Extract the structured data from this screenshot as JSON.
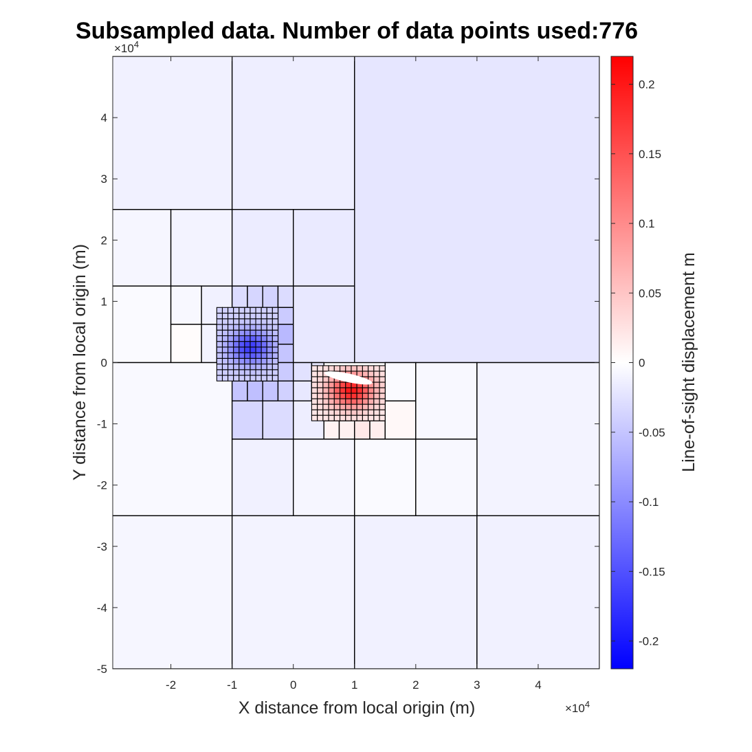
{
  "chart_data": {
    "type": "heatmap",
    "title": "Subsampled data. Number of data points used:776",
    "xlabel": "X distance from local origin (m)",
    "ylabel": "Y distance from local origin (m)",
    "colorbar_label": "Line-of-sight displacement m",
    "x_exponent": "×10^4",
    "y_exponent": "×10^4",
    "x_exp_base": "×10",
    "x_exp_power": "4",
    "y_exp_base": "×10",
    "y_exp_power": "4",
    "xlim": [
      -2.95,
      5.0
    ],
    "ylim": [
      -5.0,
      5.0
    ],
    "x_ticks": [
      -2,
      -1,
      0,
      1,
      2,
      3,
      4
    ],
    "x_tick_labels": [
      "-2",
      "-1",
      "0",
      "1",
      "2",
      "3",
      "4"
    ],
    "y_ticks": [
      -5,
      -4,
      -3,
      -2,
      -1,
      0,
      1,
      2,
      3,
      4
    ],
    "y_tick_labels": [
      "-5",
      "-4",
      "-3",
      "-2",
      "-1",
      "0",
      "1",
      "2",
      "3",
      "4"
    ],
    "clim": [
      -0.22,
      0.22
    ],
    "colorbar_ticks": [
      -0.2,
      -0.15,
      -0.1,
      -0.05,
      0,
      0.05,
      0.1,
      0.15,
      0.2
    ],
    "colorbar_tick_labels": [
      "-0.2",
      "-0.15",
      "-0.1",
      "-0.05",
      "0",
      "0.05",
      "0.1",
      "0.15",
      "0.2"
    ],
    "colormap": [
      "#0000ff",
      "#ffffff",
      "#ff0000"
    ],
    "grid": false,
    "quadtree_cells": [
      {
        "x0": -3,
        "x1": -1,
        "y0": 2.5,
        "y1": 5,
        "value": -0.012
      },
      {
        "x0": -1,
        "x1": 1,
        "y0": 2.5,
        "y1": 5,
        "value": -0.015
      },
      {
        "x0": 1,
        "x1": 5,
        "y0": 0,
        "y1": 5,
        "value": -0.022
      },
      {
        "x0": -3,
        "x1": -2,
        "y0": 1.25,
        "y1": 2.5,
        "value": -0.008
      },
      {
        "x0": -2,
        "x1": -1,
        "y0": 1.25,
        "y1": 2.5,
        "value": -0.01
      },
      {
        "x0": -1,
        "x1": 0,
        "y0": 1.25,
        "y1": 2.5,
        "value": -0.016
      },
      {
        "x0": 0,
        "x1": 1,
        "y0": 1.25,
        "y1": 2.5,
        "value": -0.018
      },
      {
        "x0": -3,
        "x1": -2,
        "y0": 0,
        "y1": 1.25,
        "value": -0.004
      },
      {
        "x0": -2,
        "x1": -1.5,
        "y0": 0.625,
        "y1": 1.25,
        "value": -0.006
      },
      {
        "x0": -1.5,
        "x1": -1,
        "y0": 0.625,
        "y1": 1.25,
        "value": -0.012
      },
      {
        "x0": -2,
        "x1": -1.5,
        "y0": 0,
        "y1": 0.625,
        "value": 0.003
      },
      {
        "x0": -1.5,
        "x1": -1.25,
        "y0": 0,
        "y1": 0.625,
        "value": -0.01
      },
      {
        "x0": -1,
        "x1": -0.75,
        "y0": 0.9,
        "y1": 1.25,
        "value": -0.03
      },
      {
        "x0": -0.75,
        "x1": -0.5,
        "y0": 0.9,
        "y1": 1.25,
        "value": -0.035
      },
      {
        "x0": -0.5,
        "x1": -0.25,
        "y0": 0.9,
        "y1": 1.25,
        "value": -0.038
      },
      {
        "x0": -0.25,
        "x1": 0,
        "y0": 0.9,
        "y1": 1.25,
        "value": -0.03
      },
      {
        "x0": -0.25,
        "x1": 0,
        "y0": 0.625,
        "y1": 0.9,
        "value": -0.045
      },
      {
        "x0": -0.25,
        "x1": 0,
        "y0": 0.3,
        "y1": 0.625,
        "value": -0.06
      },
      {
        "x0": -0.25,
        "x1": 0,
        "y0": 0,
        "y1": 0.3,
        "value": -0.05
      },
      {
        "x0": 0,
        "x1": 1,
        "y0": 0,
        "y1": 1.25,
        "value": -0.02
      },
      {
        "x0": -3,
        "x1": -1,
        "y0": -2.5,
        "y1": 0,
        "value": -0.005
      },
      {
        "x0": -1,
        "x1": -0.75,
        "y0": -0.625,
        "y1": -0.3,
        "value": -0.05
      },
      {
        "x0": -0.75,
        "x1": -0.5,
        "y0": -0.625,
        "y1": -0.3,
        "value": -0.055
      },
      {
        "x0": -0.5,
        "x1": -0.25,
        "y0": -0.625,
        "y1": -0.3,
        "value": -0.05
      },
      {
        "x0": -0.25,
        "x1": 0,
        "y0": -0.3,
        "y1": 0,
        "value": -0.045
      },
      {
        "x0": -0.25,
        "x1": 0,
        "y0": -0.625,
        "y1": -0.3,
        "value": -0.04
      },
      {
        "x0": 0,
        "x1": 0.3,
        "y0": -0.3,
        "y1": 0,
        "value": -0.025
      },
      {
        "x0": 0.3,
        "x1": 0.5,
        "y0": -0.3,
        "y1": 0,
        "value": -0.02
      },
      {
        "x0": 0,
        "x1": 0.3,
        "y0": -0.625,
        "y1": -0.3,
        "value": -0.02
      },
      {
        "x0": 0.3,
        "x1": 0.5,
        "y0": -0.625,
        "y1": -0.3,
        "value": -0.015
      },
      {
        "x0": -1,
        "x1": -0.5,
        "y0": -1.25,
        "y1": -0.625,
        "value": -0.035
      },
      {
        "x0": -0.5,
        "x1": 0,
        "y0": -1.25,
        "y1": -0.625,
        "value": -0.03
      },
      {
        "x0": 0,
        "x1": 0.5,
        "y0": -1.25,
        "y1": -0.625,
        "value": -0.015
      },
      {
        "x0": 0.5,
        "x1": 0.75,
        "y0": -1.25,
        "y1": -0.95,
        "value": 0.01
      },
      {
        "x0": 0.75,
        "x1": 1,
        "y0": -1.25,
        "y1": -0.95,
        "value": 0.012
      },
      {
        "x0": 1,
        "x1": 1.25,
        "y0": -1.25,
        "y1": -0.95,
        "value": 0.02
      },
      {
        "x0": 1.25,
        "x1": 1.5,
        "y0": -1.25,
        "y1": -0.95,
        "value": 0.015
      },
      {
        "x0": 1.5,
        "x1": 2,
        "y0": -1.25,
        "y1": -0.625,
        "value": 0.006
      },
      {
        "x0": 1.5,
        "x1": 2,
        "y0": -0.625,
        "y1": 0,
        "value": -0.004
      },
      {
        "x0": 2,
        "x1": 3,
        "y0": -1.25,
        "y1": 0,
        "value": -0.006
      },
      {
        "x0": 3,
        "x1": 5,
        "y0": -2.5,
        "y1": 0,
        "value": -0.01
      },
      {
        "x0": -1,
        "x1": 0,
        "y0": -2.5,
        "y1": -1.25,
        "value": -0.012
      },
      {
        "x0": 0,
        "x1": 1,
        "y0": -2.5,
        "y1": -1.25,
        "value": -0.008
      },
      {
        "x0": 1,
        "x1": 2,
        "y0": -2.5,
        "y1": -1.25,
        "value": -0.004
      },
      {
        "x0": 2,
        "x1": 3,
        "y0": -2.5,
        "y1": -1.25,
        "value": -0.006
      },
      {
        "x0": -3,
        "x1": -1,
        "y0": -5,
        "y1": -2.5,
        "value": -0.008
      },
      {
        "x0": -1,
        "x1": 1,
        "y0": -5,
        "y1": -2.5,
        "value": -0.01
      },
      {
        "x0": 1,
        "x1": 3,
        "y0": -5,
        "y1": -2.5,
        "value": -0.012
      },
      {
        "x0": 3,
        "x1": 5,
        "y0": -5,
        "y1": -2.5,
        "value": -0.012
      }
    ],
    "dense_regions": [
      {
        "x0": -1.25,
        "x1": -0.25,
        "y0": -0.3,
        "y1": 0.9,
        "nx": 11,
        "ny": 13,
        "center": [
          -0.7,
          0.25
        ],
        "peak": -0.17,
        "background": -0.04,
        "spread": 0.35,
        "polarity": "negative"
      },
      {
        "x0": 0.3,
        "x1": 1.5,
        "y0": -0.95,
        "y1": -0.05,
        "nx": 13,
        "ny": 10,
        "center": [
          0.95,
          -0.45
        ],
        "peak": 0.2,
        "background": 0.02,
        "spread": 0.35,
        "polarity": "positive"
      }
    ],
    "masked_region": {
      "center": [
        0.9,
        -0.25
      ],
      "rx": 0.4,
      "ry": 0.07,
      "rotation_deg": -12
    }
  }
}
